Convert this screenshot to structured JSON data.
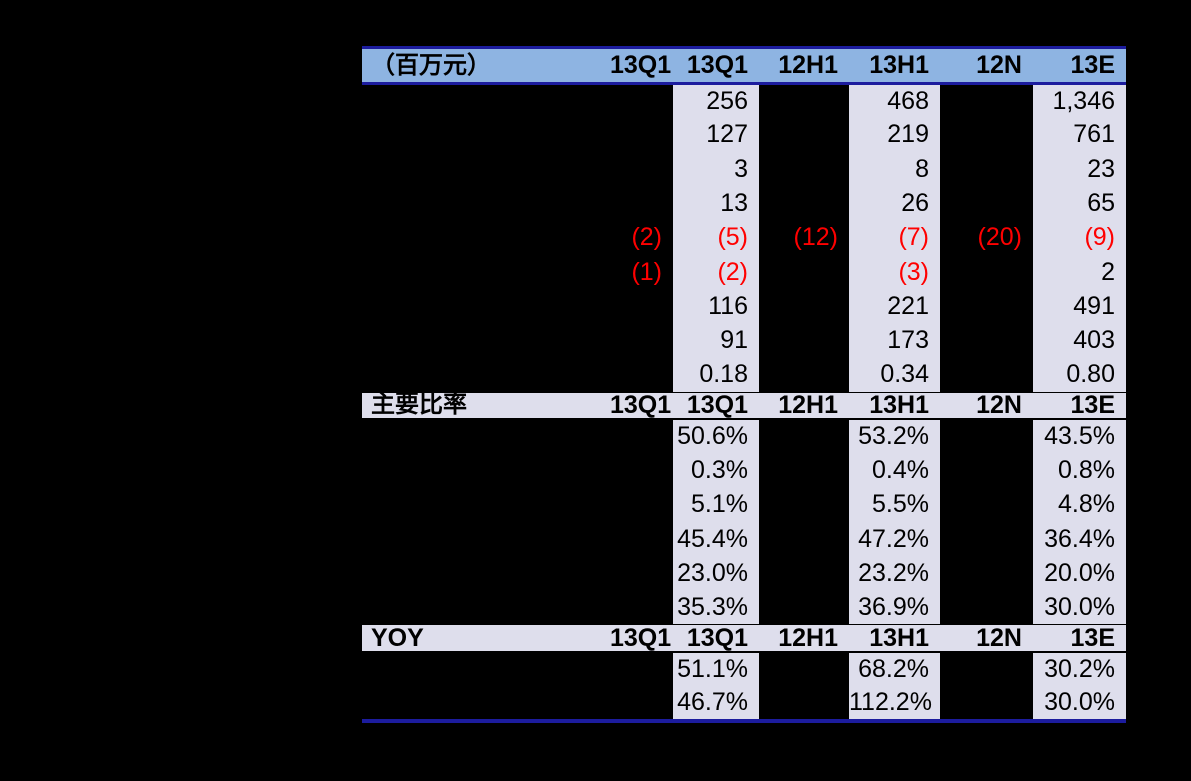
{
  "page": {
    "background": "#000000"
  },
  "table": {
    "colors": {
      "header_bg": "#8EB4E2",
      "border": "#1C1C9E",
      "stripe": "#DEDEEC",
      "negative": "#FF0000",
      "text": "#000000",
      "page_bg": "#000000"
    },
    "periods": [
      "13Q1",
      "13Q1",
      "12H1",
      "13H1",
      "12N",
      "13E"
    ],
    "sections": [
      {
        "title": "（百万元）",
        "rows": [
          [
            "",
            "256",
            "",
            "468",
            "",
            "1,346"
          ],
          [
            "",
            "127",
            "",
            "219",
            "",
            "761"
          ],
          [
            "",
            "3",
            "",
            "8",
            "",
            "23"
          ],
          [
            "",
            "13",
            "",
            "26",
            "",
            "65"
          ],
          [
            "(2)",
            "(5)",
            "(12)",
            "(7)",
            "(20)",
            "(9)"
          ],
          [
            "(1)",
            "(2)",
            "",
            "(3)",
            "",
            "2"
          ],
          [
            "",
            "116",
            "",
            "221",
            "",
            "491"
          ],
          [
            "",
            "91",
            "",
            "173",
            "",
            "403"
          ],
          [
            "",
            "0.18",
            "",
            "0.34",
            "",
            "0.80"
          ]
        ]
      },
      {
        "title": "主要比率",
        "rows": [
          [
            "",
            "50.6%",
            "",
            "53.2%",
            "",
            "43.5%"
          ],
          [
            "",
            "0.3%",
            "",
            "0.4%",
            "",
            "0.8%"
          ],
          [
            "",
            "5.1%",
            "",
            "5.5%",
            "",
            "4.8%"
          ],
          [
            "",
            "45.4%",
            "",
            "47.2%",
            "",
            "36.4%"
          ],
          [
            "",
            "23.0%",
            "",
            "23.2%",
            "",
            "20.0%"
          ],
          [
            "",
            "35.3%",
            "",
            "36.9%",
            "",
            "30.0%"
          ]
        ]
      },
      {
        "title": "YOY",
        "rows": [
          [
            "",
            "51.1%",
            "",
            "68.2%",
            "",
            "30.2%"
          ],
          [
            "",
            "46.7%",
            "",
            "112.2%",
            "",
            "30.0%"
          ]
        ]
      }
    ]
  }
}
